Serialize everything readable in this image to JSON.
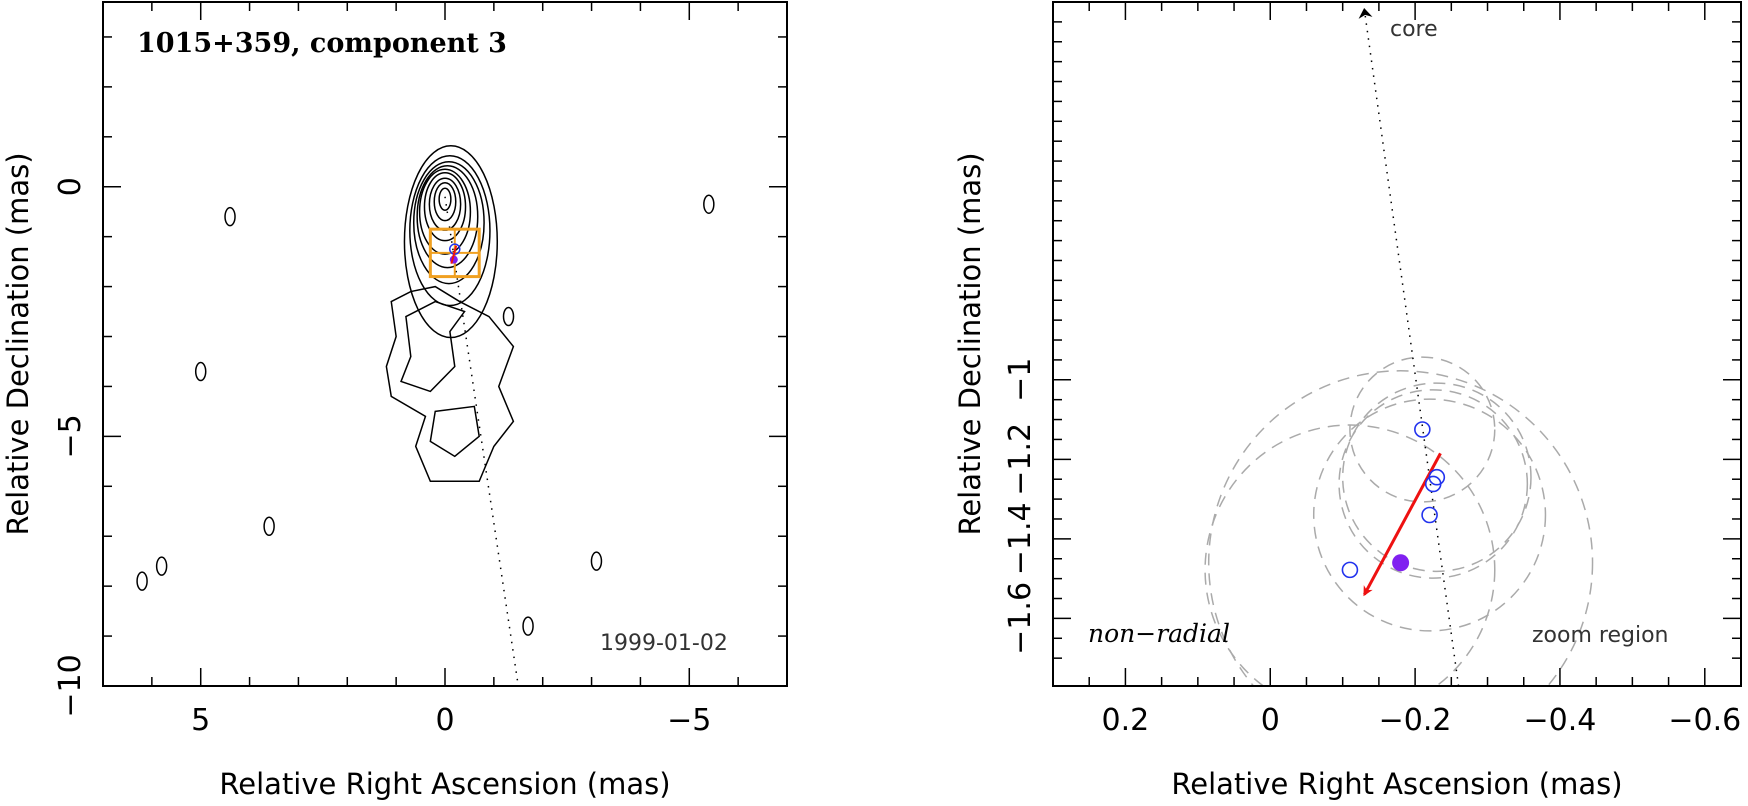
{
  "chart_data": [
    {
      "type": "contour",
      "title": "1015+359, component 3",
      "epoch": "1999-01-02",
      "xlabel": "Relative Right Ascension (mas)",
      "ylabel": "Relative Declination (mas)",
      "xlim": [
        7.0,
        -7.0
      ],
      "ylim": [
        -10.0,
        3.7
      ],
      "xticks": [
        5,
        0,
        -5
      ],
      "xtick_labels": [
        "5",
        "0",
        "−5"
      ],
      "yticks": [
        0,
        -5,
        -10
      ],
      "ytick_labels": [
        "0",
        "−5",
        "−10"
      ],
      "contour_peak": {
        "x": 0.0,
        "y": -0.1
      },
      "zoom_box": {
        "x_range": [
          -0.7,
          0.3
        ],
        "y_range": [
          -1.8,
          -0.85
        ],
        "color": "#f0a020"
      },
      "jet_direction_dotted": {
        "x": [
          0.0,
          -1.5
        ],
        "y": [
          -0.2,
          -10.0
        ]
      }
    },
    {
      "type": "scatter",
      "xlabel": "Relative Right Ascension (mas)",
      "ylabel": "Relative Declination (mas)",
      "xlim": [
        0.3,
        -0.65
      ],
      "ylim": [
        -1.77,
        -0.05
      ],
      "xticks": [
        0.2,
        0,
        -0.2,
        -0.4,
        -0.6
      ],
      "xtick_labels": [
        "0.2",
        "0",
        "−0.2",
        "−0.4",
        "−0.6"
      ],
      "yticks": [
        -1.0,
        -1.2,
        -1.4,
        -1.6
      ],
      "ytick_labels": [
        "−1",
        "−1.2",
        "−1.4",
        "−1.6"
      ],
      "labels": {
        "core": "core",
        "kinematics": "non−radial",
        "region": "zoom region"
      },
      "positions": [
        {
          "x": -0.21,
          "y": -1.125
        },
        {
          "x": -0.23,
          "y": -1.245
        },
        {
          "x": -0.225,
          "y": -1.262
        },
        {
          "x": -0.22,
          "y": -1.34
        },
        {
          "x": -0.11,
          "y": -1.478
        }
      ],
      "mean_position": {
        "x": -0.18,
        "y": -1.46,
        "color": "#8020f0"
      },
      "error_circles": [
        {
          "x": -0.21,
          "y": -1.125,
          "r": 0.1
        },
        {
          "x": -0.23,
          "y": -1.245,
          "r": 0.13
        },
        {
          "x": -0.225,
          "y": -1.262,
          "r": 0.13
        },
        {
          "x": -0.22,
          "y": -1.34,
          "r": 0.16
        },
        {
          "x": -0.11,
          "y": -1.478,
          "r": 0.2
        },
        {
          "x": -0.18,
          "y": -1.46,
          "r": 0.265
        }
      ],
      "velocity_arrow": {
        "x": [
          -0.235,
          -0.13
        ],
        "y": [
          -1.185,
          -1.54
        ],
        "color": "#ee1111"
      },
      "core_direction_line": {
        "x": [
          -0.26,
          -0.13
        ],
        "y": [
          -1.77,
          -0.07
        ]
      }
    }
  ]
}
